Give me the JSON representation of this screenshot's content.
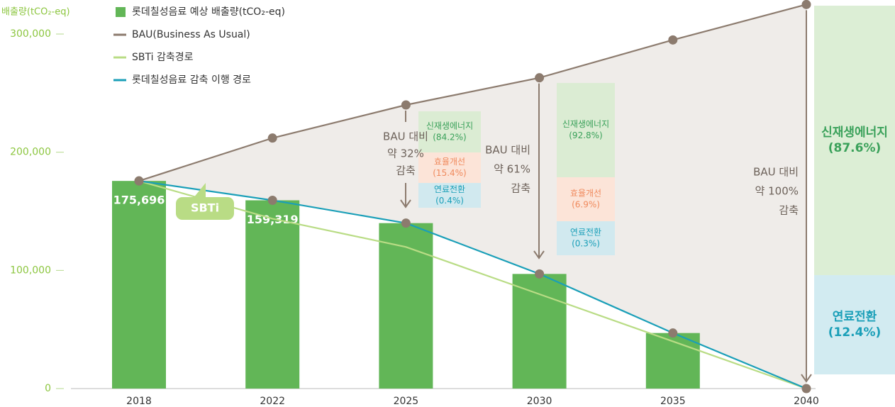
{
  "chart_data": {
    "type": "bar",
    "y_axis_label": "배출량(tCO₂-eq)",
    "categories": [
      "2018",
      "2022",
      "2025",
      "2030",
      "2035",
      "2040"
    ],
    "ylim": [
      0,
      325000
    ],
    "yticks": [
      0,
      {
        "value": 100000,
        "label": "100,000"
      },
      {
        "value": 200000,
        "label": "200,000"
      },
      {
        "value": 300000,
        "label": "300,000"
      }
    ],
    "bars": {
      "name": "롯데칠성음료 예상 배출량(tCO₂-eq)",
      "color": "#62b657",
      "values": [
        175696,
        159319,
        140000,
        97000,
        47000,
        null
      ],
      "value_labels": [
        "175,696",
        "159,319",
        null,
        null,
        null,
        null
      ]
    },
    "series": [
      {
        "name": "BAU(Business As Usual)",
        "color": "#8c7b6e",
        "marker": true,
        "values": [
          175696,
          212000,
          240000,
          263000,
          295000,
          325000
        ]
      },
      {
        "name": "SBTi 감축경로",
        "color": "#b9dc85",
        "marker": false,
        "values": [
          175696,
          143750,
          119800,
          79860,
          39930,
          0
        ]
      },
      {
        "name": "롯데칠성음료 감축 이행 경로",
        "color": "#1a9fb8",
        "marker": true,
        "values": [
          175696,
          159319,
          140000,
          97000,
          47000,
          0
        ]
      }
    ],
    "callout": "SBTi",
    "reduction_notes": [
      {
        "text": [
          "BAU 대비",
          "약 32%",
          "감축"
        ],
        "breakdown": [
          [
            "신재생에너지",
            "(84.2%)"
          ],
          [
            "효율개선",
            "(15.4%)"
          ],
          [
            "연료전환",
            "(0.4%)"
          ]
        ]
      },
      {
        "text": [
          "BAU 대비",
          "약 61%",
          "감축"
        ],
        "breakdown": [
          [
            "신재생에너지",
            "(92.8%)"
          ],
          [
            "효율개선",
            "(6.9%)"
          ],
          [
            "연료전환",
            "(0.3%)"
          ]
        ]
      },
      {
        "text": [
          "BAU 대비",
          "약 100%",
          "감축"
        ],
        "breakdown": [
          [
            "신재생에너지",
            "(87.6%)"
          ],
          [
            "연료전환",
            "(12.4%)"
          ]
        ]
      }
    ]
  }
}
